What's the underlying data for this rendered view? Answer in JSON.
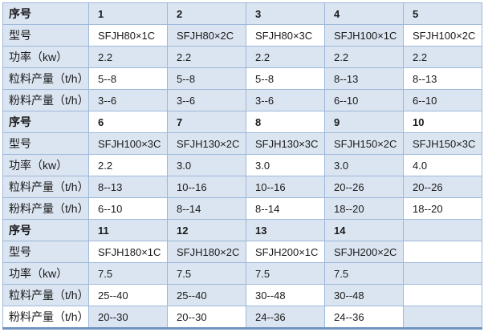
{
  "colors": {
    "band_fill": "#dbe5f1",
    "grid_border": "#9db8da",
    "bottom_border": "#7091c1",
    "text": "#1a1a1a",
    "page_background": "#ffffff"
  },
  "table": {
    "labels": {
      "serial": "序号",
      "model": "型号",
      "power": "功率（kw）",
      "pellet": "粒料产量（t/h）",
      "powder": "粉料产量（t/h）"
    },
    "blocks": [
      {
        "serial": [
          "1",
          "2",
          "3",
          "4",
          "5"
        ],
        "model": [
          "SFJH80×1C",
          "SFJH80×2C",
          "SFJH80×3C",
          "SFJH100×1C",
          "SFJH100×2C"
        ],
        "power": [
          "2.2",
          "2.2",
          "2.2",
          "2.2",
          "2.2"
        ],
        "pellet": [
          "5--8",
          "5--8",
          "5--8",
          "8--13",
          "8--13"
        ],
        "powder": [
          "3--6",
          "3--6",
          "3--6",
          "6--10",
          "6--10"
        ]
      },
      {
        "serial": [
          "6",
          "7",
          "8",
          "9",
          "10"
        ],
        "model": [
          "SFJH100×3C",
          "SFJH130×2C",
          "SFJH130×3C",
          "SFJH150×2C",
          "SFJH150×3C"
        ],
        "power": [
          "2.2",
          "3.0",
          "3.0",
          "3.0",
          "4.0"
        ],
        "pellet": [
          "8--13",
          "10--16",
          "10--16",
          "20--26",
          "20--26"
        ],
        "powder": [
          "6--10",
          "8--14",
          "8--14",
          "18--20",
          "18--20"
        ]
      },
      {
        "serial": [
          "11",
          "12",
          "13",
          "14",
          ""
        ],
        "model": [
          "SFJH180×1C",
          "SFJH180×2C",
          "SFJH200×1C",
          "SFJH200×2C",
          ""
        ],
        "power": [
          "7.5",
          "7.5",
          "7.5",
          "7.5",
          ""
        ],
        "pellet": [
          "25--40",
          "25--40",
          "30--48",
          "30--48",
          ""
        ],
        "powder": [
          "20--30",
          "20--30",
          "24--36",
          "24--36",
          ""
        ]
      }
    ]
  }
}
